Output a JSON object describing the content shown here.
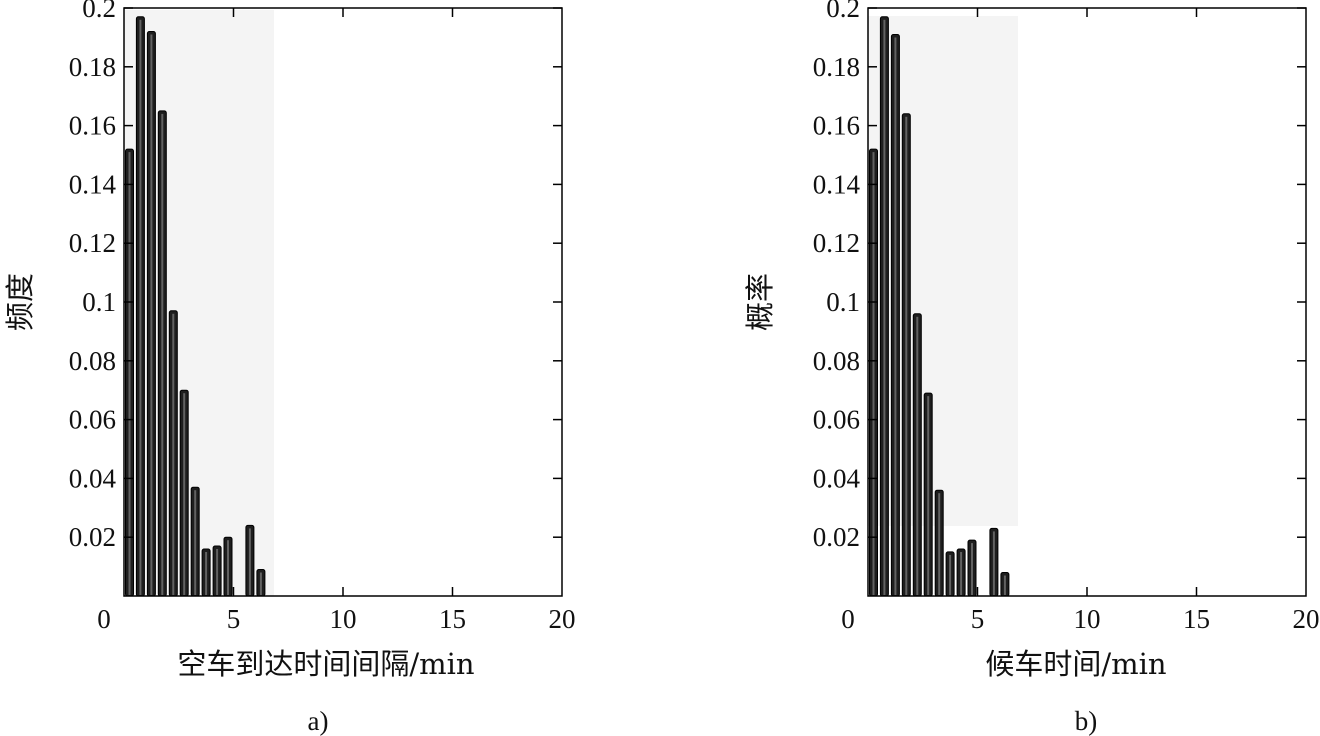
{
  "chart_data": [
    {
      "type": "bar",
      "panel_label": "a)",
      "xlabel": "空车到达时间间隔/min",
      "ylabel": "频度",
      "xlim": [
        0,
        20
      ],
      "ylim": [
        0,
        0.2
      ],
      "xticks": [
        0,
        5,
        10,
        15,
        20
      ],
      "yticks": [
        0.02,
        0.04,
        0.06,
        0.08,
        0.1,
        0.12,
        0.14,
        0.16,
        0.18,
        0.2
      ],
      "ytick_labels": [
        "0.02",
        "0.04",
        "0.06",
        "0.08",
        "0.1",
        "0.12",
        "0.14",
        "0.16",
        "0.18",
        "0.2"
      ],
      "grid": false,
      "x": [
        0.25,
        0.75,
        1.25,
        1.75,
        2.25,
        2.75,
        3.25,
        3.75,
        4.25,
        4.75,
        5.75,
        6.25
      ],
      "values": [
        0.152,
        0.197,
        0.192,
        0.165,
        0.097,
        0.07,
        0.037,
        0.016,
        0.017,
        0.02,
        0.024,
        0.009
      ]
    },
    {
      "type": "bar",
      "panel_label": "b)",
      "xlabel": "候车时间/min",
      "ylabel": "概率",
      "xlim": [
        0,
        20
      ],
      "ylim": [
        0,
        0.2
      ],
      "xticks": [
        0,
        5,
        10,
        15,
        20
      ],
      "yticks": [
        0.02,
        0.04,
        0.06,
        0.08,
        0.1,
        0.12,
        0.14,
        0.16,
        0.18,
        0.2
      ],
      "ytick_labels": [
        "0.02",
        "0.04",
        "0.06",
        "0.08",
        "0.1",
        "0.12",
        "0.14",
        "0.16",
        "0.18",
        "0.2"
      ],
      "grid": false,
      "x": [
        0.25,
        0.75,
        1.25,
        1.75,
        2.25,
        2.75,
        3.25,
        3.75,
        4.25,
        4.75,
        5.75,
        6.25
      ],
      "values": [
        0.152,
        0.197,
        0.191,
        0.164,
        0.096,
        0.069,
        0.036,
        0.015,
        0.016,
        0.019,
        0.023,
        0.008
      ]
    }
  ]
}
